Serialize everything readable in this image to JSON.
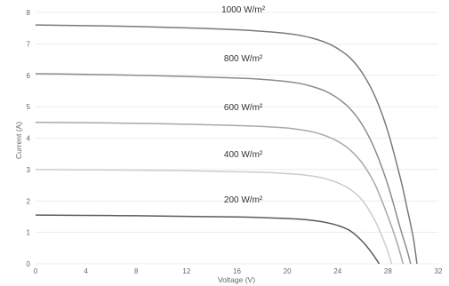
{
  "chart_data": {
    "type": "line",
    "title": "",
    "xlabel": "Voltage (V)",
    "ylabel": "Current  (A)",
    "xlim": [
      0,
      32
    ],
    "ylim": [
      0,
      8
    ],
    "x_ticks": [
      "0",
      "4",
      "8",
      "12",
      "16",
      "20",
      "24",
      "28",
      "32"
    ],
    "y_ticks": [
      "0",
      "1",
      "2",
      "3",
      "4",
      "5",
      "6",
      "7",
      "8"
    ],
    "grid": "horizontal",
    "series": [
      {
        "name": "1000 W/m²",
        "color": "#7a7a7a",
        "isc": 7.6,
        "x": [
          0,
          4,
          8,
          12,
          16,
          18,
          20,
          21,
          22,
          23,
          24,
          25,
          26,
          27,
          28,
          29,
          29.5,
          30,
          30.3
        ],
        "y": [
          7.6,
          7.58,
          7.55,
          7.51,
          7.45,
          7.4,
          7.33,
          7.27,
          7.18,
          7.05,
          6.85,
          6.55,
          6.05,
          5.3,
          4.2,
          2.7,
          1.8,
          0.85,
          0
        ]
      },
      {
        "name": "800 W/m²",
        "color": "#8c8c8c",
        "isc": 6.05,
        "x": [
          0,
          4,
          8,
          12,
          16,
          18,
          20,
          21,
          22,
          23,
          24,
          25,
          26,
          27,
          28,
          29,
          29.5,
          29.8
        ],
        "y": [
          6.05,
          6.03,
          6.0,
          5.96,
          5.91,
          5.87,
          5.8,
          5.74,
          5.64,
          5.5,
          5.27,
          4.93,
          4.4,
          3.6,
          2.5,
          1.1,
          0.45,
          0
        ]
      },
      {
        "name": "600 W/m²",
        "color": "#a8a8a8",
        "isc": 4.5,
        "x": [
          0,
          4,
          8,
          12,
          16,
          18,
          20,
          21,
          22,
          23,
          24,
          25,
          26,
          27,
          28,
          28.7,
          29.2
        ],
        "y": [
          4.5,
          4.49,
          4.47,
          4.44,
          4.4,
          4.37,
          4.32,
          4.27,
          4.2,
          4.08,
          3.9,
          3.62,
          3.18,
          2.5,
          1.5,
          0.7,
          0
        ]
      },
      {
        "name": "400 W/m²",
        "color": "#cccccc",
        "isc": 3.0,
        "x": [
          0,
          4,
          8,
          12,
          16,
          18,
          20,
          21,
          22,
          23,
          24,
          25,
          26,
          27,
          27.8,
          28.3
        ],
        "y": [
          3.0,
          2.99,
          2.98,
          2.96,
          2.93,
          2.91,
          2.87,
          2.84,
          2.79,
          2.71,
          2.58,
          2.37,
          2.0,
          1.35,
          0.6,
          0
        ]
      },
      {
        "name": "200 W/m²",
        "color": "#5a5a5a",
        "isc": 1.55,
        "x": [
          0,
          4,
          8,
          12,
          16,
          18,
          20,
          21,
          22,
          23,
          24,
          25,
          26,
          26.8,
          27.3
        ],
        "y": [
          1.55,
          1.54,
          1.53,
          1.51,
          1.49,
          1.47,
          1.44,
          1.42,
          1.38,
          1.32,
          1.22,
          1.05,
          0.7,
          0.3,
          0
        ]
      }
    ]
  }
}
